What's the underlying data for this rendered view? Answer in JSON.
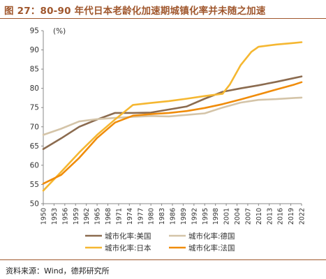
{
  "figure": {
    "title": "图 27：80-90 年代日本老龄化加速期城镇化率并未随之加速",
    "source": "资料来源：Wind，德邦研究所"
  },
  "colors": {
    "title": "#a0572d",
    "usa": "#8b6b4f",
    "germany": "#d4c4a8",
    "japan": "#f5b731",
    "france": "#f08c0a"
  },
  "chart_data": {
    "type": "line",
    "title": "",
    "xlabel": "",
    "ylabel": "(%)",
    "ylim": [
      50,
      95
    ],
    "yticks": [
      "50",
      "55",
      "60",
      "65",
      "70",
      "75",
      "80",
      "85",
      "90",
      "95"
    ],
    "xlim": [
      1950,
      2022
    ],
    "xticks": [
      "1950",
      "1953",
      "1956",
      "1959",
      "1962",
      "1965",
      "1968",
      "1971",
      "1974",
      "1977",
      "1980",
      "1983",
      "1986",
      "1989",
      "1992",
      "1995",
      "1998",
      "2001",
      "2004",
      "2007",
      "2010",
      "2013",
      "2016",
      "2019",
      "2022"
    ],
    "grid": false,
    "legend_position": "bottom",
    "series": [
      {
        "name": "城市化率:美国",
        "key": "usa",
        "points": [
          [
            1950,
            64.2
          ],
          [
            1955,
            67.0
          ],
          [
            1960,
            70.0
          ],
          [
            1965,
            71.9
          ],
          [
            1970,
            73.6
          ],
          [
            1975,
            73.6
          ],
          [
            1980,
            73.7
          ],
          [
            1985,
            74.5
          ],
          [
            1990,
            75.3
          ],
          [
            1995,
            77.3
          ],
          [
            2000,
            79.1
          ],
          [
            2005,
            80.0
          ],
          [
            2010,
            80.8
          ],
          [
            2015,
            81.7
          ],
          [
            2020,
            82.7
          ],
          [
            2022,
            83.1
          ]
        ]
      },
      {
        "name": "城市化率:德国",
        "key": "germany",
        "points": [
          [
            1950,
            67.9
          ],
          [
            1955,
            69.5
          ],
          [
            1960,
            71.4
          ],
          [
            1965,
            72.0
          ],
          [
            1970,
            72.3
          ],
          [
            1975,
            72.6
          ],
          [
            1980,
            72.8
          ],
          [
            1985,
            72.7
          ],
          [
            1990,
            73.1
          ],
          [
            1995,
            73.5
          ],
          [
            2000,
            75.0
          ],
          [
            2005,
            76.3
          ],
          [
            2010,
            77.0
          ],
          [
            2015,
            77.2
          ],
          [
            2020,
            77.5
          ],
          [
            2022,
            77.6
          ]
        ]
      },
      {
        "name": "城市化率:日本",
        "key": "japan",
        "points": [
          [
            1950,
            53.4
          ],
          [
            1955,
            58.3
          ],
          [
            1960,
            63.3
          ],
          [
            1965,
            67.9
          ],
          [
            1970,
            71.9
          ],
          [
            1975,
            75.7
          ],
          [
            1980,
            76.2
          ],
          [
            1985,
            76.7
          ],
          [
            1990,
            77.3
          ],
          [
            1995,
            78.0
          ],
          [
            2000,
            78.6
          ],
          [
            2002,
            81.0
          ],
          [
            2005,
            86.0
          ],
          [
            2008,
            89.5
          ],
          [
            2010,
            90.8
          ],
          [
            2015,
            91.4
          ],
          [
            2020,
            91.8
          ],
          [
            2022,
            92.0
          ]
        ]
      },
      {
        "name": "城市化率:法国",
        "key": "france",
        "points": [
          [
            1950,
            55.2
          ],
          [
            1955,
            57.5
          ],
          [
            1960,
            61.9
          ],
          [
            1965,
            67.1
          ],
          [
            1970,
            71.1
          ],
          [
            1975,
            72.9
          ],
          [
            1980,
            73.3
          ],
          [
            1985,
            73.6
          ],
          [
            1990,
            74.1
          ],
          [
            1995,
            74.9
          ],
          [
            2000,
            75.9
          ],
          [
            2005,
            77.1
          ],
          [
            2010,
            78.4
          ],
          [
            2015,
            79.7
          ],
          [
            2020,
            81.0
          ],
          [
            2022,
            81.6
          ]
        ]
      }
    ]
  }
}
